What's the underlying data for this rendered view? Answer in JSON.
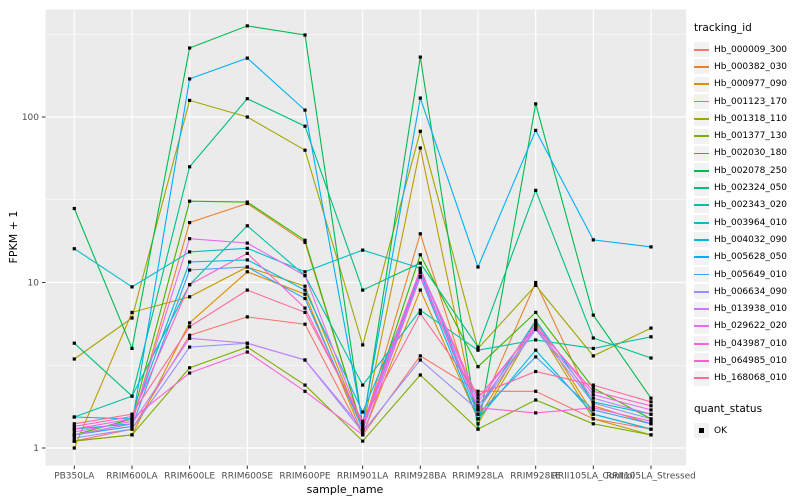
{
  "figure": {
    "background": "#FFFFFF",
    "panel_background": "#EBEBEB",
    "grid_color": "#FFFFFF",
    "axis_text_color": "#4D4D4D",
    "tick_mark_color": "#333333",
    "point_color": "#000000"
  },
  "axes": {
    "x_title": "sample_name",
    "y_title": "FPKM + 1",
    "y_tick_labels": [
      "1",
      "10",
      "100"
    ]
  },
  "legend": {
    "tracking_title": "tracking_id",
    "quant_title": "quant_status",
    "quant_items": [
      {
        "label": "OK",
        "marker": "filled-black-square"
      }
    ]
  },
  "chart_data": {
    "type": "line",
    "title": "",
    "xlabel": "sample_name",
    "ylabel": "FPKM + 1",
    "yscale": "log10",
    "y_ticks": [
      1,
      10,
      100
    ],
    "y_minor_ticks": [
      3.162,
      31.62,
      316.2
    ],
    "ylim": [
      0.79,
      443
    ],
    "grid": true,
    "legend_position": "right",
    "point_shape": "filled-square",
    "quant_status_all": "OK",
    "categories": [
      "PB350LA",
      "RRIM600LA",
      "RRIM600LE",
      "RRIM600SE",
      "RRIM600PE",
      "RRIM901LA",
      "RRIM928BA",
      "RRIM928LA",
      "RRIM928LE",
      "RRII105LA_Control",
      "RRII105LA_Stressed"
    ],
    "series": [
      {
        "name": "Hb_000009_300",
        "color": "#F8766D",
        "values": [
          1.1,
          1.3,
          4.8,
          6.2,
          5.6,
          1.2,
          3.6,
          2.2,
          2.2,
          1.5,
          1.3
        ]
      },
      {
        "name": "Hb_000382_030",
        "color": "#EA8331",
        "values": [
          1.2,
          1.4,
          23,
          30,
          17.5,
          1.3,
          19.7,
          1.6,
          10,
          1.8,
          1.4
        ]
      },
      {
        "name": "Hb_000977_090",
        "color": "#D89000",
        "values": [
          1.1,
          1.2,
          5.7,
          11.6,
          8.5,
          1.2,
          9,
          1.5,
          5.8,
          1.6,
          1.3
        ]
      },
      {
        "name": "Hb_001123_170",
        "color": "#C09B00",
        "values": [
          1.0,
          6.6,
          8.2,
          12.4,
          9.5,
          1.3,
          65,
          1.4,
          5.5,
          1.5,
          1.2
        ]
      },
      {
        "name": "Hb_001318_110",
        "color": "#A3A500",
        "values": [
          3.45,
          6.1,
          126,
          100,
          63,
          4.2,
          82,
          4.0,
          9.6,
          3.6,
          5.3
        ]
      },
      {
        "name": "Hb_001377_130",
        "color": "#7CAE00",
        "values": [
          1.1,
          1.2,
          3.05,
          4.07,
          2.4,
          1.1,
          2.76,
          1.3,
          1.95,
          1.4,
          1.2
        ]
      },
      {
        "name": "Hb_002030_180",
        "color": "#39B600",
        "values": [
          1.2,
          1.5,
          31,
          30.6,
          18,
          1.3,
          14.7,
          3.1,
          6.6,
          2.3,
          1.5
        ]
      },
      {
        "name": "Hb_002078_250",
        "color": "#00BB4E",
        "values": [
          28,
          4.0,
          261,
          355,
          313,
          1.35,
          230,
          1.3,
          120,
          6.35,
          2.0
        ]
      },
      {
        "name": "Hb_002324_050",
        "color": "#00BF7D",
        "values": [
          4.3,
          2.06,
          50,
          129,
          88,
          9.0,
          13.1,
          4.07,
          36,
          4.62,
          3.5
        ]
      },
      {
        "name": "Hb_002343_020",
        "color": "#00C1A3",
        "values": [
          1.54,
          2.06,
          9.7,
          22,
          11,
          2.4,
          6.8,
          3.9,
          4.5,
          4.0,
          4.7
        ]
      },
      {
        "name": "Hb_003964_010",
        "color": "#00BFC4",
        "values": [
          16,
          9.4,
          15.3,
          16.1,
          11.6,
          15.7,
          12.2,
          1.7,
          5.9,
          1.9,
          1.6
        ]
      },
      {
        "name": "Hb_004032_090",
        "color": "#00BAE0",
        "values": [
          1.54,
          1.5,
          13.3,
          13.7,
          9.0,
          1.65,
          10.8,
          1.5,
          3.9,
          1.6,
          1.3
        ]
      },
      {
        "name": "Hb_005628_050",
        "color": "#00B0F6",
        "values": [
          1.3,
          1.4,
          170,
          227,
          110,
          1.4,
          130,
          12.4,
          83,
          18.1,
          16.4
        ]
      },
      {
        "name": "Hb_005649_010",
        "color": "#35A2FF",
        "values": [
          1.2,
          1.35,
          11.9,
          12.4,
          8.0,
          1.3,
          11.5,
          1.6,
          3.55,
          1.7,
          1.4
        ]
      },
      {
        "name": "Hb_006634_090",
        "color": "#9590FF",
        "values": [
          1.15,
          1.3,
          4.07,
          4.3,
          3.4,
          1.25,
          3.4,
          1.7,
          5.2,
          1.87,
          1.5
        ]
      },
      {
        "name": "Hb_013938_010",
        "color": "#C77CFF",
        "values": [
          1.2,
          1.4,
          4.6,
          4.3,
          3.4,
          1.3,
          10.9,
          1.8,
          5.3,
          2.0,
          1.6
        ]
      },
      {
        "name": "Hb_029622_020",
        "color": "#E76BF3",
        "values": [
          1.25,
          1.45,
          18.4,
          17.3,
          11.0,
          1.35,
          11.8,
          1.9,
          5.6,
          2.1,
          1.7
        ]
      },
      {
        "name": "Hb_043987_010",
        "color": "#FA62DB",
        "values": [
          1.3,
          1.5,
          2.84,
          3.8,
          2.2,
          1.2,
          10.8,
          1.75,
          1.63,
          1.75,
          1.45
        ]
      },
      {
        "name": "Hb_064985_010",
        "color": "#FF61CC",
        "values": [
          1.35,
          1.55,
          9.7,
          15.0,
          7.0,
          1.4,
          12.0,
          2.0,
          5.4,
          2.2,
          1.8
        ]
      },
      {
        "name": "Hb_168068_010",
        "color": "#FF6A98",
        "values": [
          1.4,
          1.6,
          5.4,
          9.0,
          6.6,
          1.45,
          6.5,
          2.1,
          2.9,
          2.4,
          1.9
        ]
      }
    ]
  }
}
